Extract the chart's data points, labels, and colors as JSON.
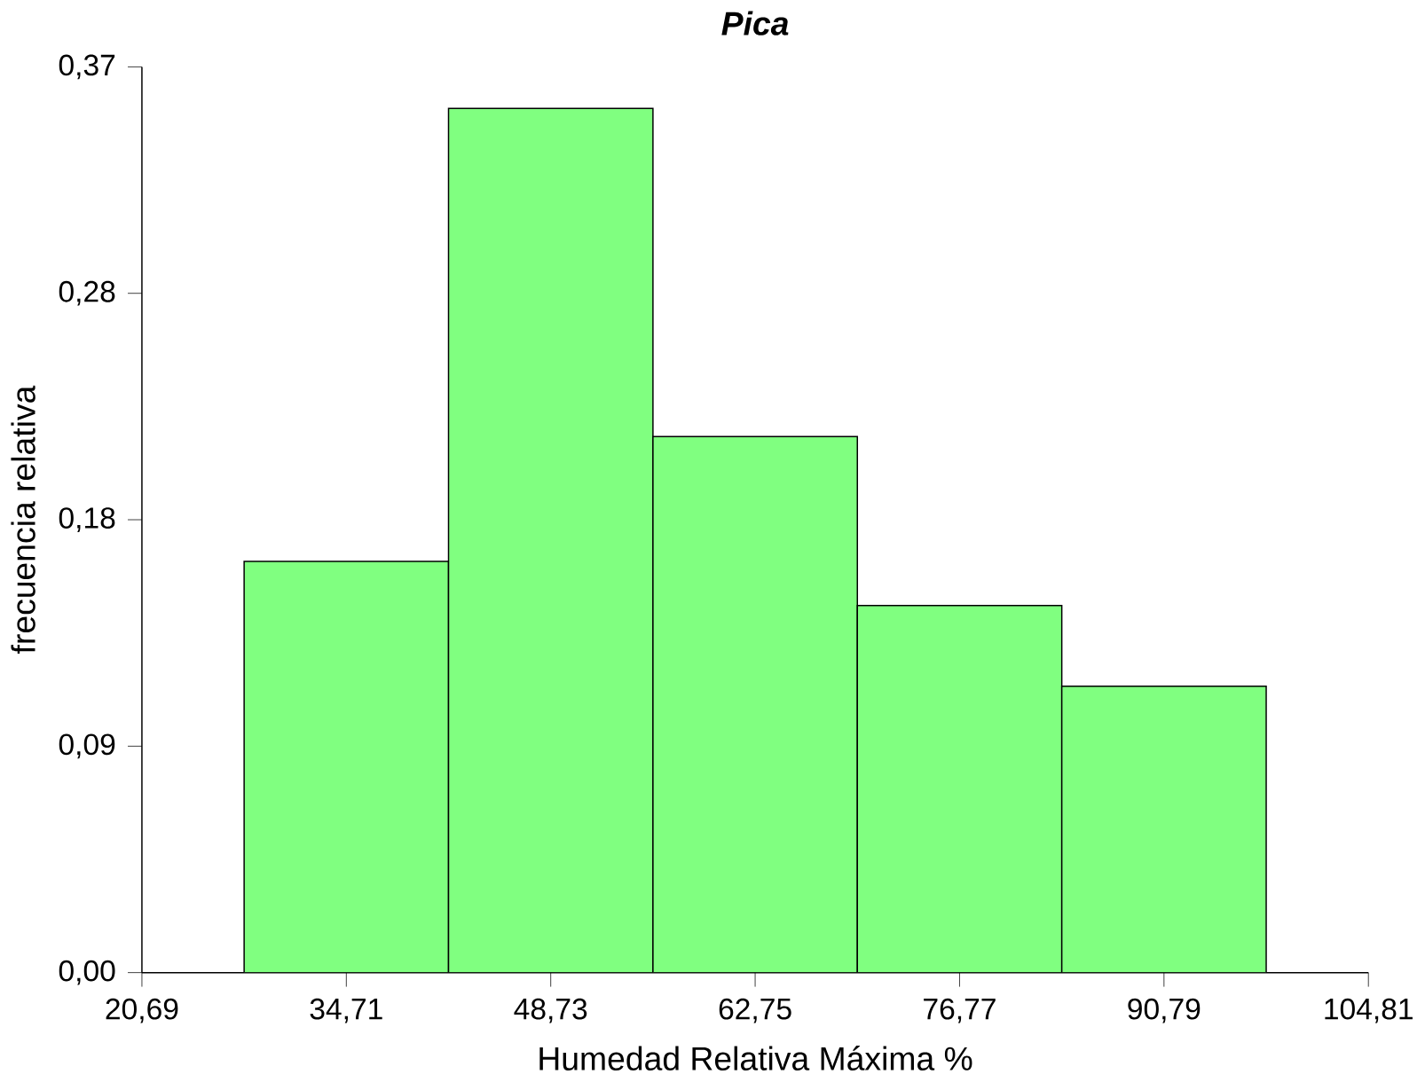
{
  "chart_data": {
    "type": "histogram",
    "title": "Pica",
    "xlabel": "Humedad Relativa Máxima %",
    "ylabel": "frecuencia relativa",
    "bins": [
      27.7,
      41.72,
      55.74,
      69.76,
      83.78,
      97.8
    ],
    "values": [
      0.168,
      0.353,
      0.219,
      0.15,
      0.117
    ],
    "color": "#80ff80",
    "xlim": [
      20.69,
      104.81
    ],
    "xticks": [
      {
        "value": 20.69,
        "label": "20,69"
      },
      {
        "value": 34.71,
        "label": "34,71"
      },
      {
        "value": 48.73,
        "label": "48,73"
      },
      {
        "value": 62.75,
        "label": "62,75"
      },
      {
        "value": 76.77,
        "label": "76,77"
      },
      {
        "value": 90.79,
        "label": "90,79"
      },
      {
        "value": 104.81,
        "label": "104,81"
      }
    ],
    "ylim": [
      0,
      0.37
    ],
    "yticks": [
      {
        "value": 0,
        "label": "0,00"
      },
      {
        "value": 0.0925,
        "label": "0,09"
      },
      {
        "value": 0.185,
        "label": "0,18"
      },
      {
        "value": 0.2775,
        "label": "0,28"
      },
      {
        "value": 0.37,
        "label": "0,37"
      }
    ]
  }
}
